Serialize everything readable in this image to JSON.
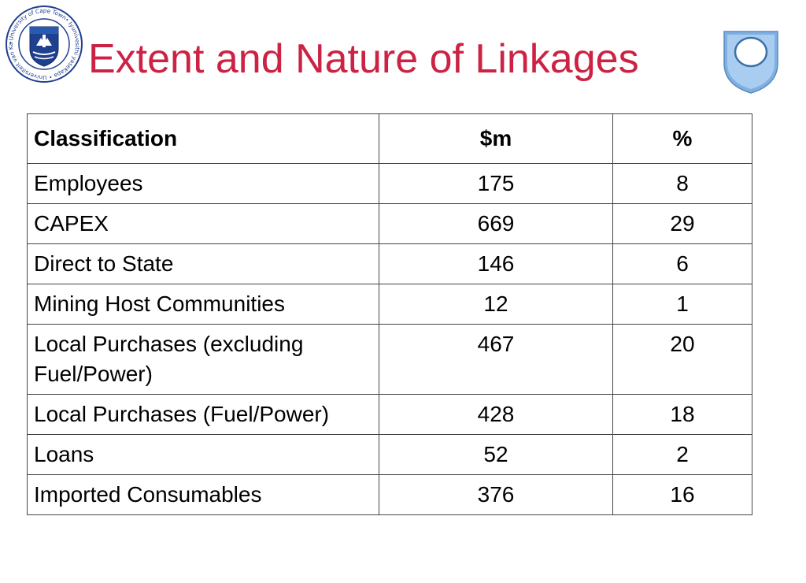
{
  "slide": {
    "title": "Extent and Nature of Linkages",
    "logo_left": {
      "name": "University of Cape Town crest",
      "ring_text": "•University of Cape Town• Iyunivesithi yaseKapa • Universiteit van Kaapstad"
    },
    "logo_right": {
      "name": "Open University shield"
    }
  },
  "table": {
    "headers": [
      "Classification",
      "$m",
      "%"
    ],
    "rows": [
      {
        "classification": "Employees",
        "amount": "175",
        "percent": "8"
      },
      {
        "classification": "CAPEX",
        "amount": "669",
        "percent": "29"
      },
      {
        "classification": "Direct to State",
        "amount": "146",
        "percent": "6"
      },
      {
        "classification": "Mining Host Communities",
        "amount": "12",
        "percent": "1"
      },
      {
        "classification": "Local Purchases (excluding Fuel/Power)",
        "amount": "467",
        "percent": "20"
      },
      {
        "classification": "Local Purchases (Fuel/Power)",
        "amount": "428",
        "percent": "18"
      },
      {
        "classification": "Loans",
        "amount": "52",
        "percent": "2"
      },
      {
        "classification": "Imported Consumables",
        "amount": "376",
        "percent": "16"
      }
    ]
  },
  "colors": {
    "title": "#cc2244",
    "border": "#444444",
    "uct_blue": "#1f3f8f",
    "ou_blue": "#7fb0e0"
  }
}
